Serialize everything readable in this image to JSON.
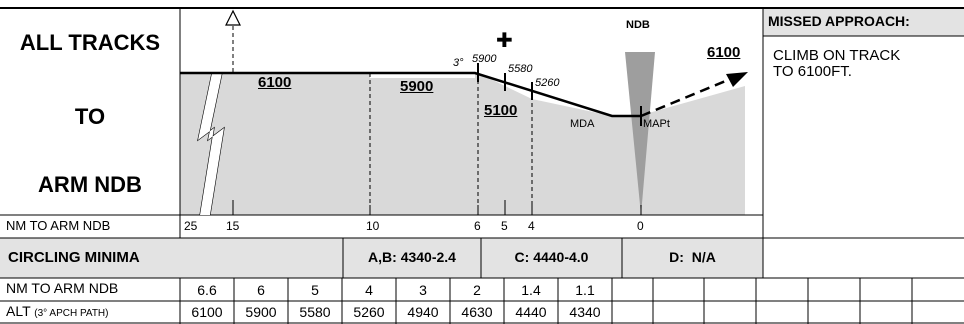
{
  "title_block": {
    "line1": "ALL TRACKS",
    "line2": "TO",
    "line3": "ARM NDB"
  },
  "missed_approach": {
    "heading": "MISSED APPROACH:",
    "text_line1": "CLIMB ON TRACK",
    "text_line2": "TO 6100FT."
  },
  "profile": {
    "altitudes": {
      "segment1": "6100",
      "segment2": "5900",
      "segment3": "5100",
      "missed": "6100"
    },
    "descent_angle_label": "3°",
    "step_altitudes": [
      "5900",
      "5580",
      "5260"
    ],
    "mda_label": "MDA",
    "mapt_label": "MAPt",
    "ndb_label": "NDB",
    "fix_symbol": "✚",
    "dme_row_label": "NM TO ARM NDB",
    "dme_ticks": [
      "25",
      "15",
      "10",
      "6",
      "5",
      "4",
      "0"
    ]
  },
  "circling": {
    "label": "CIRCLING MINIMA",
    "ab": "A,B: 4340-2.4",
    "c": "C: 4440-4.0",
    "d": "D:  N/A"
  },
  "table": {
    "row1_label": "NM TO ARM NDB",
    "row2_label_main": "ALT",
    "row2_label_small": "(3° APCH PATH)",
    "nm": [
      "6.6",
      "6",
      "5",
      "4",
      "3",
      "2",
      "1.4",
      "1.1"
    ],
    "alt": [
      "6100",
      "5900",
      "5580",
      "5260",
      "4940",
      "4630",
      "4440",
      "4340"
    ]
  },
  "colors": {
    "terrain": "#d9d9d9",
    "ndb_beam": "#9e9e9e",
    "panel_bg": "#e3e3e3"
  }
}
